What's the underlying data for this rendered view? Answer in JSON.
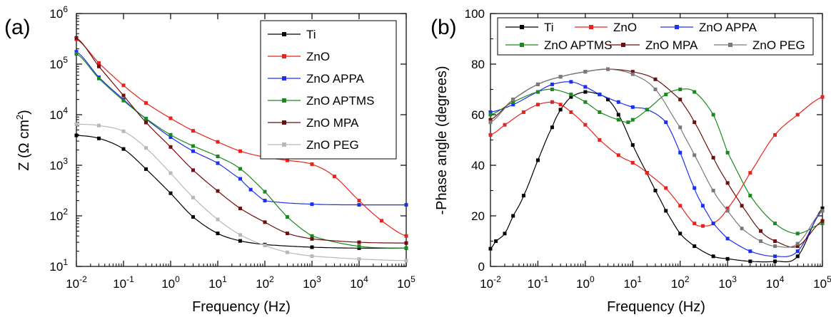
{
  "chart_data": [
    {
      "panel": "(a)",
      "type": "line",
      "xlabel": "Frequency (Hz)",
      "ylabel": "Z (Ω cm²)",
      "ylabel_base": "Z (Ω cm",
      "ylabel_sup": "2",
      "ylabel_tail": ")",
      "x_scale": "log",
      "y_scale": "log",
      "xlim": [
        0.01,
        100000
      ],
      "ylim": [
        10,
        1000000
      ],
      "x_ticks": [
        {
          "value": 0.01,
          "base": "10",
          "exp": "-2"
        },
        {
          "value": 0.1,
          "base": "10",
          "exp": "-1"
        },
        {
          "value": 1,
          "base": "10",
          "exp": "0"
        },
        {
          "value": 10,
          "base": "10",
          "exp": "1"
        },
        {
          "value": 100,
          "base": "10",
          "exp": "2"
        },
        {
          "value": 1000,
          "base": "10",
          "exp": "3"
        },
        {
          "value": 10000,
          "base": "10",
          "exp": "4"
        },
        {
          "value": 100000,
          "base": "10",
          "exp": "5"
        }
      ],
      "y_ticks": [
        {
          "value": 10,
          "base": "10",
          "exp": "1"
        },
        {
          "value": 100,
          "base": "10",
          "exp": "2"
        },
        {
          "value": 1000,
          "base": "10",
          "exp": "3"
        },
        {
          "value": 10000,
          "base": "10",
          "exp": "4"
        },
        {
          "value": 100000,
          "base": "10",
          "exp": "5"
        },
        {
          "value": 1000000,
          "base": "10",
          "exp": "6"
        }
      ],
      "legend": "top-right",
      "grid": false,
      "series": [
        {
          "name": "Ti",
          "color": "#000000",
          "x": [
            0.01,
            0.03,
            0.1,
            0.3,
            1,
            3,
            10,
            30,
            100,
            1000,
            10000,
            100000
          ],
          "y": [
            3900,
            3400,
            2100,
            840,
            280,
            95,
            45,
            32,
            27,
            24,
            23,
            23
          ]
        },
        {
          "name": "ZnO",
          "color": "#e8221e",
          "x": [
            0.01,
            0.03,
            0.1,
            0.3,
            1,
            3,
            10,
            30,
            100,
            300,
            1000,
            3000,
            10000,
            30000,
            100000
          ],
          "y": [
            310000,
            105000,
            38000,
            17000,
            8500,
            4800,
            2900,
            1900,
            1450,
            1250,
            1050,
            600,
            200,
            80,
            40
          ]
        },
        {
          "name": "ZnO APPA",
          "color": "#1c2ff0",
          "x": [
            0.01,
            0.03,
            0.1,
            0.3,
            1,
            3,
            10,
            30,
            50,
            100,
            1000,
            10000,
            100000
          ],
          "y": [
            175000,
            55000,
            20000,
            8200,
            3600,
            1900,
            1100,
            540,
            330,
            200,
            170,
            165,
            165
          ]
        },
        {
          "name": "ZnO APTMS",
          "color": "#1a8a1e",
          "x": [
            0.01,
            0.03,
            0.1,
            0.3,
            1,
            3,
            10,
            30,
            100,
            300,
            1000,
            10000,
            100000
          ],
          "y": [
            160000,
            52000,
            19000,
            8400,
            4000,
            2400,
            1500,
            850,
            300,
            95,
            40,
            25,
            23
          ]
        },
        {
          "name": "ZnO MPA",
          "color": "#6e0e0e",
          "x": [
            0.01,
            0.03,
            0.1,
            0.3,
            1,
            3,
            10,
            30,
            100,
            300,
            1000,
            10000,
            100000
          ],
          "y": [
            330000,
            90000,
            24000,
            7000,
            2300,
            800,
            310,
            140,
            75,
            45,
            35,
            30,
            29
          ]
        },
        {
          "name": "ZnO PEG",
          "color": "#b8b8b8",
          "x": [
            0.01,
            0.03,
            0.1,
            0.3,
            1,
            3,
            10,
            30,
            100,
            300,
            1000,
            10000,
            100000
          ],
          "y": [
            6500,
            6100,
            4700,
            2200,
            700,
            230,
            85,
            42,
            26,
            19,
            16,
            14,
            13
          ]
        }
      ]
    },
    {
      "panel": "(b)",
      "type": "line",
      "xlabel": "Frequency (Hz)",
      "ylabel": "-Phase angle (degrees)",
      "x_scale": "log",
      "y_scale": "linear",
      "xlim": [
        0.01,
        100000
      ],
      "ylim": [
        0,
        100
      ],
      "x_ticks": [
        {
          "value": 0.01,
          "base": "10",
          "exp": "-2"
        },
        {
          "value": 0.1,
          "base": "10",
          "exp": "-1"
        },
        {
          "value": 1,
          "base": "10",
          "exp": "0"
        },
        {
          "value": 10,
          "base": "10",
          "exp": "1"
        },
        {
          "value": 100,
          "base": "10",
          "exp": "2"
        },
        {
          "value": 1000,
          "base": "10",
          "exp": "3"
        },
        {
          "value": 10000,
          "base": "10",
          "exp": "4"
        },
        {
          "value": 100000,
          "base": "10",
          "exp": "5"
        }
      ],
      "y_ticks": [
        {
          "value": 0,
          "label": "0"
        },
        {
          "value": 20,
          "label": "20"
        },
        {
          "value": 40,
          "label": "40"
        },
        {
          "value": 60,
          "label": "60"
        },
        {
          "value": 80,
          "label": "80"
        },
        {
          "value": 100,
          "label": "100"
        }
      ],
      "legend": "top",
      "grid": false,
      "series": [
        {
          "name": "Ti",
          "color": "#000000",
          "x": [
            0.01,
            0.013,
            0.02,
            0.03,
            0.05,
            0.1,
            0.2,
            0.3,
            0.5,
            1,
            2,
            3,
            5,
            10,
            20,
            30,
            50,
            100,
            200,
            500,
            1000,
            3000,
            10000,
            30000,
            100000
          ],
          "y": [
            7,
            10,
            13,
            20,
            28,
            42,
            55,
            62,
            67,
            69,
            68,
            66,
            60,
            48,
            37,
            30,
            22,
            13,
            8,
            4,
            3,
            2,
            2,
            4,
            23
          ]
        },
        {
          "name": "ZnO",
          "color": "#e8221e",
          "x": [
            0.01,
            0.02,
            0.05,
            0.1,
            0.2,
            0.3,
            0.5,
            1,
            2,
            5,
            10,
            20,
            50,
            100,
            200,
            300,
            500,
            1000,
            3000,
            10000,
            30000,
            100000
          ],
          "y": [
            52,
            56,
            61,
            64,
            65,
            64,
            61,
            56,
            50,
            44,
            41,
            37,
            31,
            24,
            17,
            16,
            17,
            23,
            37,
            52,
            60,
            67
          ]
        },
        {
          "name": "ZnO APPA",
          "color": "#1c2ff0",
          "x": [
            0.01,
            0.03,
            0.1,
            0.2,
            0.5,
            1,
            2,
            5,
            10,
            20,
            50,
            100,
            200,
            300,
            500,
            1000,
            3000,
            10000,
            30000,
            100000
          ],
          "y": [
            61,
            64,
            69,
            72,
            73,
            71,
            68,
            65,
            63,
            62,
            57,
            45,
            31,
            24,
            17,
            11,
            6,
            4,
            6,
            22
          ]
        },
        {
          "name": "ZnO APTMS",
          "color": "#1a8a1e",
          "x": [
            0.01,
            0.03,
            0.1,
            0.2,
            0.5,
            1,
            2,
            5,
            8,
            10,
            20,
            50,
            100,
            200,
            500,
            1000,
            3000,
            10000,
            30000,
            100000
          ],
          "y": [
            60,
            65,
            69,
            70,
            68,
            65,
            61,
            58,
            57,
            58,
            62,
            68,
            70,
            69,
            60,
            45,
            28,
            17,
            13,
            17
          ]
        },
        {
          "name": "ZnO MPA",
          "color": "#6e0e0e",
          "x": [
            0.01,
            0.03,
            0.1,
            0.3,
            1,
            3,
            10,
            30,
            100,
            200,
            500,
            1000,
            2000,
            5000,
            10000,
            30000,
            100000
          ],
          "y": [
            58,
            66,
            72,
            75,
            77,
            78,
            77,
            74,
            66,
            57,
            43,
            33,
            24,
            14,
            10,
            8,
            18
          ]
        },
        {
          "name": "ZnO PEG",
          "color": "#7a7a7a",
          "x": [
            0.01,
            0.03,
            0.1,
            0.3,
            1,
            3,
            10,
            30,
            100,
            200,
            500,
            1000,
            2000,
            5000,
            10000,
            30000,
            100000
          ],
          "y": [
            57,
            66,
            72,
            75,
            77,
            78,
            76,
            70,
            55,
            44,
            30,
            22,
            15,
            10,
            8,
            9,
            22
          ]
        }
      ]
    }
  ]
}
